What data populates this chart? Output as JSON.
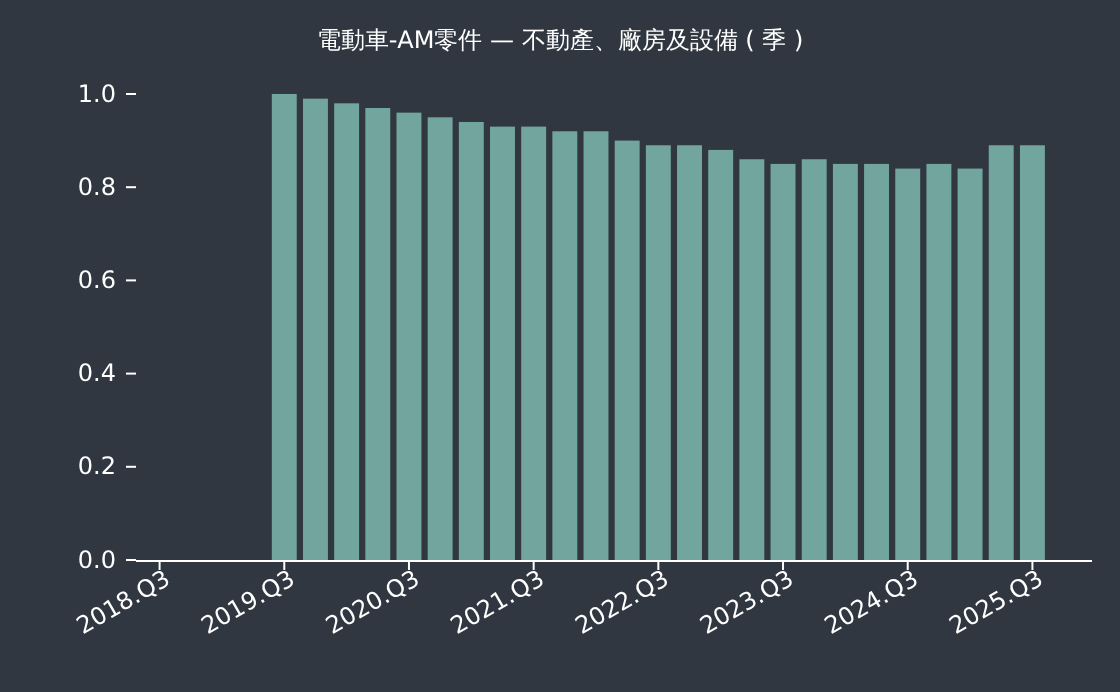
{
  "chart_data": {
    "type": "bar",
    "title": "電動車-AM零件 — 不動產、廠房及設備 ( 季 )",
    "categories": [
      "2018.Q3",
      null,
      null,
      null,
      "2019.Q3",
      null,
      null,
      null,
      "2020.Q3",
      null,
      null,
      null,
      "2021.Q3",
      null,
      null,
      null,
      "2022.Q3",
      null,
      null,
      null,
      "2023.Q3",
      null,
      null,
      null,
      "2024.Q3",
      null,
      null,
      null,
      "2025.Q3"
    ],
    "values": [
      null,
      null,
      null,
      null,
      1.0,
      0.99,
      0.98,
      0.97,
      0.96,
      0.95,
      0.94,
      0.93,
      0.93,
      0.92,
      0.92,
      0.9,
      0.89,
      0.89,
      0.88,
      0.86,
      0.85,
      0.86,
      0.85,
      0.85,
      0.84,
      0.85,
      0.84,
      0.89,
      0.89
    ],
    "color": "#72a59e",
    "ylim": [
      0,
      1
    ],
    "yticks": [
      {
        "value": 0,
        "label": "0.0"
      },
      {
        "value": 0.2,
        "label": "0.2"
      },
      {
        "value": 0.4,
        "label": "0.4"
      },
      {
        "value": 0.6,
        "label": "0.6"
      },
      {
        "value": 0.8,
        "label": "0.8"
      },
      {
        "value": 1,
        "label": "1.0"
      }
    ],
    "grid": false
  }
}
